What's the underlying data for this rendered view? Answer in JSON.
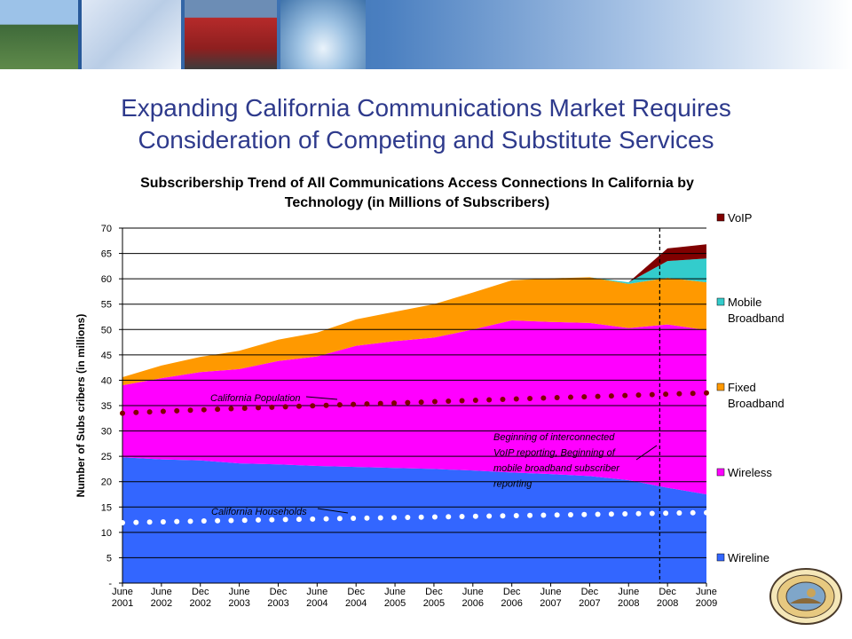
{
  "slide": {
    "title_line1": "Expanding California Communications Market Requires",
    "title_line2": "Consideration of Competing and Substitute Services"
  },
  "chart_data": {
    "type": "area",
    "title_line1": "Subscribership Trend of All Communications Access Connections In California by",
    "title_line2": "Technology (in Millions of Subscribers)",
    "ylabel": "Number of Subs cribers (in millions)",
    "ylim": [
      0,
      70
    ],
    "yticks": [
      "-",
      "5",
      "10",
      "15",
      "20",
      "25",
      "30",
      "35",
      "40",
      "45",
      "50",
      "55",
      "60",
      "65",
      "70"
    ],
    "x_label_rows": [
      [
        "June",
        "June",
        "Dec",
        "June",
        "Dec",
        "June",
        "Dec",
        "June",
        "Dec",
        "June",
        "Dec",
        "June",
        "Dec",
        "June",
        "Dec",
        "June"
      ],
      [
        "2001",
        "2002",
        "2002",
        "2003",
        "2003",
        "2004",
        "2004",
        "2005",
        "2005",
        "2006",
        "2006",
        "2007",
        "2007",
        "2008",
        "2008",
        "2009"
      ]
    ],
    "series": [
      {
        "name": "Wireline",
        "color": "#3366ff",
        "values": [
          24.8,
          24.4,
          24.2,
          23.6,
          23.4,
          23.1,
          22.9,
          22.7,
          22.5,
          22.2,
          21.8,
          21.5,
          21.1,
          20.3,
          18.8,
          17.5
        ]
      },
      {
        "name": "Wireless",
        "color": "#ff00ff",
        "values": [
          14.2,
          16.0,
          17.4,
          18.6,
          20.4,
          21.6,
          23.9,
          25.0,
          25.9,
          27.8,
          30.0,
          30.0,
          30.2,
          30.0,
          32.2,
          32.4
        ]
      },
      {
        "name": "Fixed Broadband",
        "color": "#ff9900",
        "values": [
          1.6,
          2.5,
          3.0,
          3.6,
          4.2,
          4.7,
          5.2,
          5.8,
          6.6,
          7.3,
          7.9,
          8.6,
          9.0,
          8.7,
          9.2,
          9.4
        ]
      },
      {
        "name": "Mobile Broadband",
        "color": "#33cccc",
        "values": [
          0,
          0,
          0,
          0,
          0,
          0,
          0,
          0,
          0,
          0,
          0,
          0,
          0,
          0.3,
          3.3,
          4.7
        ]
      },
      {
        "name": "VoIP",
        "color": "#800000",
        "values": [
          0,
          0,
          0,
          0,
          0,
          0,
          0,
          0,
          0,
          0,
          0,
          0,
          0,
          0,
          2.5,
          2.8
        ]
      }
    ],
    "legend_order": [
      "VoIP",
      "Mobile Broadband",
      "Fixed Broadband",
      "Wireless",
      "Wireline"
    ],
    "legend_labels": {
      "VoIP": [
        "VoIP"
      ],
      "Mobile Broadband": [
        "Mobile",
        "Broadband"
      ],
      "Fixed Broadband": [
        "Fixed",
        "Broadband"
      ],
      "Wireless": [
        "Wireless"
      ],
      "Wireline": [
        "Wireline"
      ]
    },
    "legend_position": "right",
    "gridlines": "horizontal",
    "overlays": [
      {
        "name": "California Population",
        "dot_color": "#800000",
        "start": 33.5,
        "end": 37.5
      },
      {
        "name": "California Households",
        "dot_color": "#ffffff",
        "start": 11.9,
        "end": 13.9
      }
    ],
    "vline_at_index": 13.8,
    "annotation_lines": [
      "Beginning of interconnected",
      "VoIP reporting, Beginning of",
      "mobile broadband subscriber",
      "reporting"
    ]
  }
}
